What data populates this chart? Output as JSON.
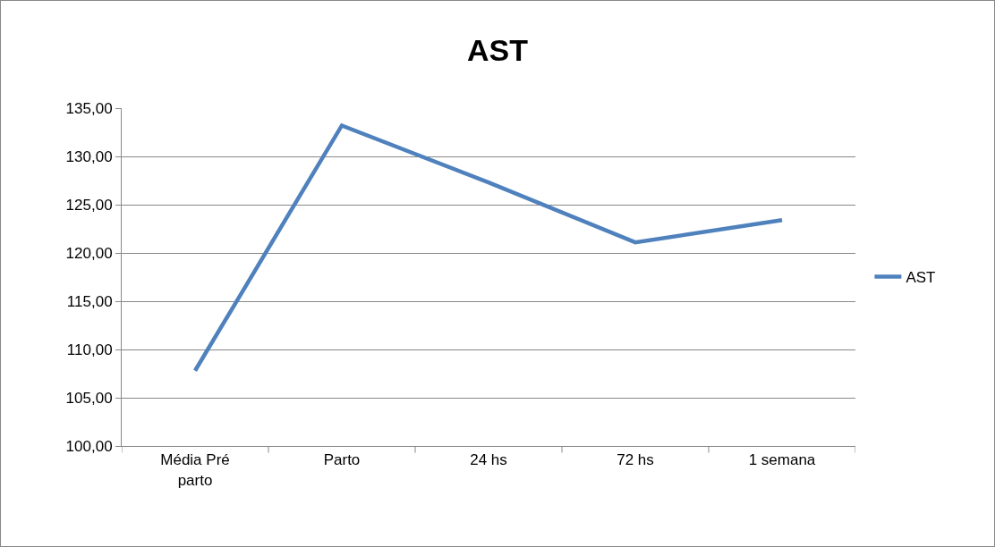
{
  "chart_data": {
    "type": "line",
    "title": "AST",
    "categories": [
      "Média Pré parto",
      "Parto",
      "24 hs",
      "72 hs",
      "1 semana"
    ],
    "series": [
      {
        "name": "AST",
        "color": "#4f81bd",
        "values": [
          107.8,
          133.2,
          127.3,
          121.1,
          123.4
        ]
      }
    ],
    "ylim": [
      100,
      135
    ],
    "yticks": [
      {
        "value": 100,
        "label": "100,00"
      },
      {
        "value": 105,
        "label": "105,00"
      },
      {
        "value": 110,
        "label": "110,00"
      },
      {
        "value": 115,
        "label": "115,00"
      },
      {
        "value": 120,
        "label": "120,00"
      },
      {
        "value": 125,
        "label": "125,00"
      },
      {
        "value": 130,
        "label": "130,00"
      },
      {
        "value": 135,
        "label": "135,00"
      }
    ],
    "grid": "y",
    "legend": "right",
    "marker": "none",
    "line_style": "solid"
  }
}
